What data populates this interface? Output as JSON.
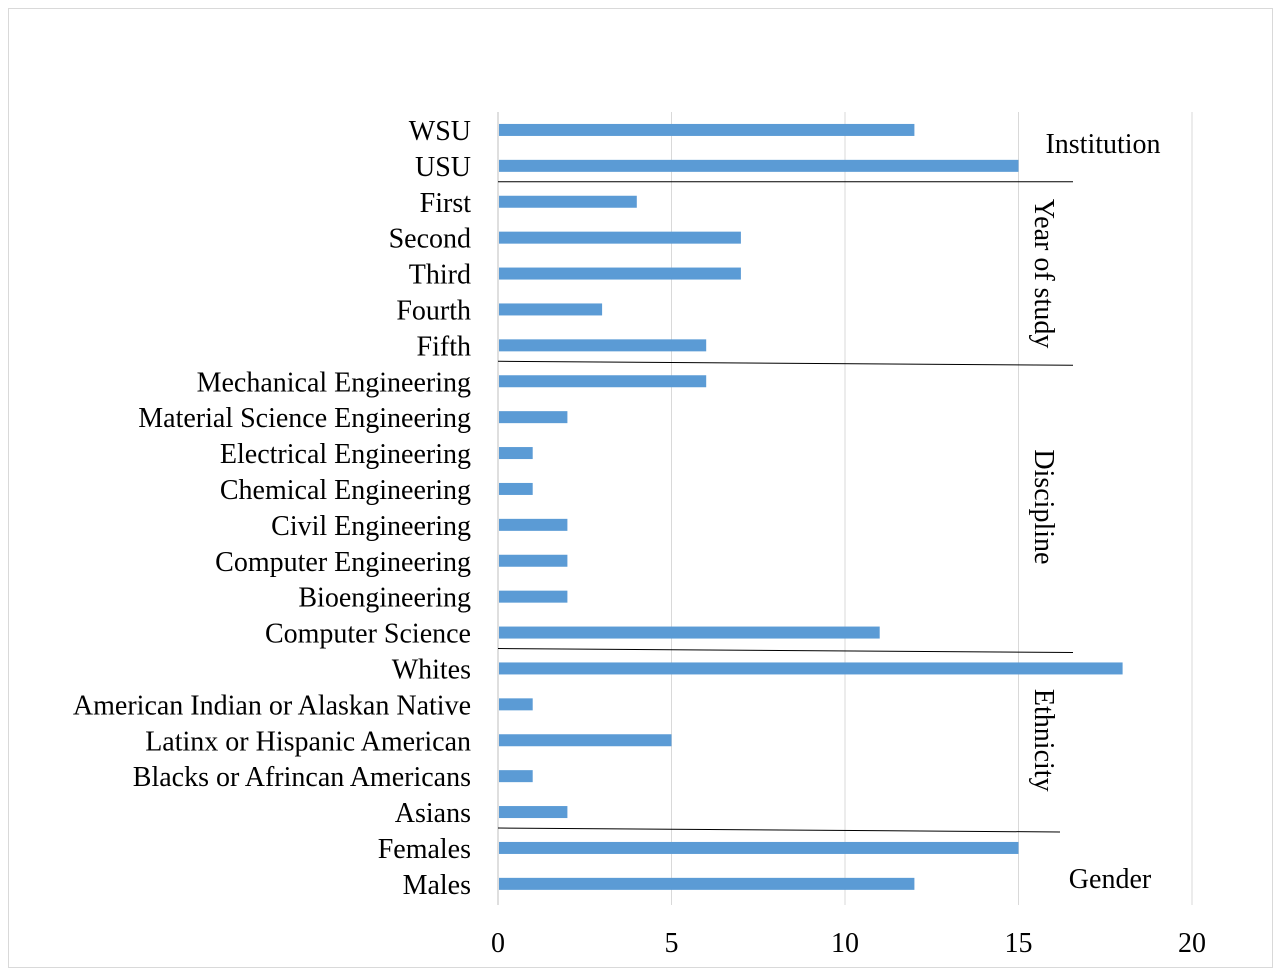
{
  "chart_data": {
    "type": "bar",
    "orientation": "horizontal",
    "categories": [
      "WSU",
      "USU",
      "First",
      "Second",
      "Third",
      "Fourth",
      "Fifth",
      "Mechanical Engineering",
      "Material Science Engineering",
      "Electrical Engineering",
      "Chemical Engineering",
      "Civil Engineering",
      "Computer Engineering",
      "Bioengineering",
      "Computer Science",
      "Whites",
      "American Indian or Alaskan Native",
      "Latinx or Hispanic American",
      "Blacks or Afrincan Americans",
      "Asians",
      "Females",
      "Males"
    ],
    "values": [
      12,
      15,
      4,
      7,
      7,
      3,
      6,
      6,
      2,
      1,
      1,
      2,
      2,
      2,
      11,
      18,
      1,
      5,
      1,
      2,
      15,
      12
    ],
    "xlim": [
      0,
      20
    ],
    "xticks": [
      0,
      5,
      10,
      15,
      20
    ],
    "grid": true,
    "bar_color": "#5b9bd5",
    "groups": [
      {
        "label": "Institution",
        "first": 0,
        "last": 1,
        "vertical": false
      },
      {
        "label": "Year of study",
        "first": 2,
        "last": 6,
        "vertical": true
      },
      {
        "label": "Discipline",
        "first": 7,
        "last": 14,
        "vertical": true
      },
      {
        "label": "Ethnicity",
        "first": 15,
        "last": 19,
        "vertical": true
      },
      {
        "label": "Gender",
        "first": 20,
        "last": 21,
        "vertical": false
      }
    ]
  }
}
